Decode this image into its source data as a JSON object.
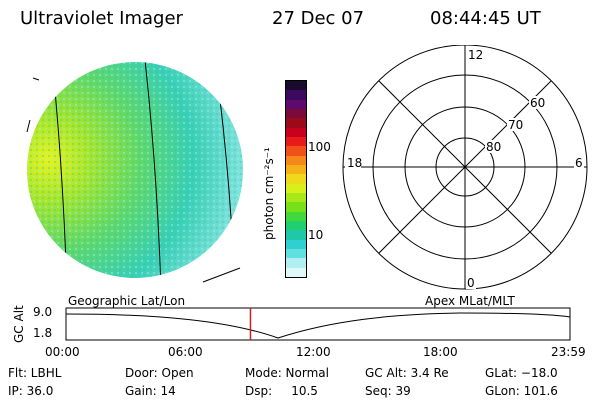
{
  "header": {
    "title": "Ultraviolet Imager",
    "date": "27 Dec 07",
    "time": "08:44:45 UT"
  },
  "colorbar": {
    "label": "photon cm⁻²s⁻¹",
    "ticks": [
      "100",
      "10"
    ],
    "colors": [
      "#1a0a2e",
      "#3b0a5e",
      "#5c0a6e",
      "#7a0a3a",
      "#9c0a1a",
      "#c8001e",
      "#e81a1a",
      "#f0501a",
      "#f5881a",
      "#f5b01a",
      "#f0d81a",
      "#d8f01a",
      "#a8e81a",
      "#78e01a",
      "#40d83a",
      "#20d070",
      "#20c8a8",
      "#30d0d0",
      "#60e0e0",
      "#b0f0f0",
      "#e0f8f8"
    ]
  },
  "polar_grid": {
    "latitude_labels": [
      "80",
      "70",
      "60"
    ],
    "mlt_labels": {
      "top": "12",
      "left": "18",
      "right": "6",
      "bottom": "0"
    }
  },
  "timeline": {
    "left_title": "Geographic Lat/Lon",
    "right_title": "Apex MLat/MLT",
    "axis_label": "GC Alt",
    "y_ticks": [
      "9.0",
      "1.8"
    ],
    "x_ticks": [
      "00:00",
      "06:00",
      "12:00",
      "18:00",
      "23:59"
    ],
    "current_time_fraction": 0.366
  },
  "info": {
    "flt": "Flt: LBHL",
    "ip": "IP: 36.0",
    "door": "Door: Open",
    "gain": "Gain: 14",
    "mode": "Mode: Normal",
    "dsp": "Dsp:     10.5",
    "gcalt": "GC Alt: 3.4 Re",
    "seq": "Seq: 39",
    "glat": "GLat: −18.0",
    "glon": "GLon: 101.6"
  },
  "colors": {
    "marker": "#d02020"
  }
}
